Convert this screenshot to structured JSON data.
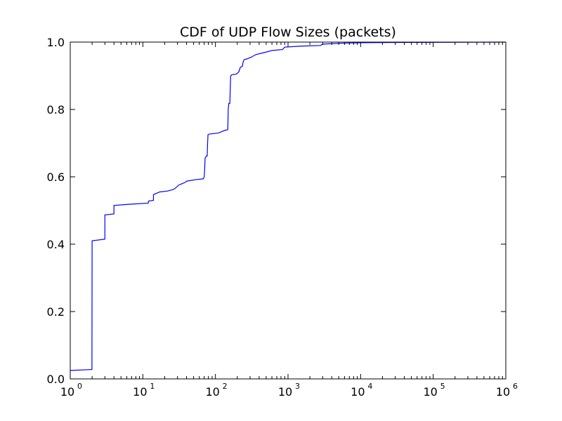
{
  "chart_data": {
    "type": "line",
    "title": "CDF of UDP Flow Sizes (packets)",
    "xlabel": "",
    "ylabel": "",
    "x_scale": "log",
    "xlim": [
      1,
      1000000
    ],
    "ylim": [
      0,
      1
    ],
    "grid": false,
    "legend": "none",
    "line_color": "#0000ff",
    "x_ticks": [
      {
        "value": 1,
        "base": "10",
        "exp": "0"
      },
      {
        "value": 10,
        "base": "10",
        "exp": "1"
      },
      {
        "value": 100,
        "base": "10",
        "exp": "2"
      },
      {
        "value": 1000,
        "base": "10",
        "exp": "3"
      },
      {
        "value": 10000,
        "base": "10",
        "exp": "4"
      },
      {
        "value": 100000,
        "base": "10",
        "exp": "5"
      },
      {
        "value": 1000000,
        "base": "10",
        "exp": "6"
      }
    ],
    "y_ticks": [
      {
        "value": 0.0,
        "label": "0.0"
      },
      {
        "value": 0.2,
        "label": "0.2"
      },
      {
        "value": 0.4,
        "label": "0.4"
      },
      {
        "value": 0.6,
        "label": "0.6"
      },
      {
        "value": 0.8,
        "label": "0.8"
      },
      {
        "value": 1.0,
        "label": "1.0"
      }
    ],
    "series": [
      {
        "points": [
          [
            1,
            0.025
          ],
          [
            1.99,
            0.028
          ],
          [
            2,
            0.41
          ],
          [
            3,
            0.415
          ],
          [
            3,
            0.487
          ],
          [
            4,
            0.49
          ],
          [
            4,
            0.515
          ],
          [
            6,
            0.518
          ],
          [
            11.9,
            0.522
          ],
          [
            12,
            0.528
          ],
          [
            14,
            0.53
          ],
          [
            14,
            0.547
          ],
          [
            17,
            0.555
          ],
          [
            22,
            0.558
          ],
          [
            26,
            0.562
          ],
          [
            28,
            0.566
          ],
          [
            31,
            0.575
          ],
          [
            35,
            0.58
          ],
          [
            38,
            0.583
          ],
          [
            40,
            0.587
          ],
          [
            55,
            0.592
          ],
          [
            68,
            0.594
          ],
          [
            70,
            0.6
          ],
          [
            71,
            0.62
          ],
          [
            72,
            0.655
          ],
          [
            75,
            0.662
          ],
          [
            77,
            0.662
          ],
          [
            78,
            0.7
          ],
          [
            79,
            0.725
          ],
          [
            82,
            0.727
          ],
          [
            110,
            0.73
          ],
          [
            125,
            0.735
          ],
          [
            135,
            0.738
          ],
          [
            148,
            0.74
          ],
          [
            150,
            0.8
          ],
          [
            153,
            0.818
          ],
          [
            158,
            0.818
          ],
          [
            160,
            0.86
          ],
          [
            162,
            0.9
          ],
          [
            168,
            0.903
          ],
          [
            195,
            0.905
          ],
          [
            210,
            0.912
          ],
          [
            220,
            0.925
          ],
          [
            235,
            0.928
          ],
          [
            240,
            0.94
          ],
          [
            248,
            0.948
          ],
          [
            270,
            0.95
          ],
          [
            310,
            0.955
          ],
          [
            360,
            0.963
          ],
          [
            450,
            0.968
          ],
          [
            600,
            0.975
          ],
          [
            840,
            0.978
          ],
          [
            900,
            0.985
          ],
          [
            1500,
            0.988
          ],
          [
            2800,
            0.99
          ],
          [
            3000,
            0.994
          ],
          [
            6000,
            0.997
          ],
          [
            10000,
            0.998
          ],
          [
            30000,
            0.999
          ],
          [
            1000000,
            1.0
          ]
        ]
      }
    ]
  }
}
